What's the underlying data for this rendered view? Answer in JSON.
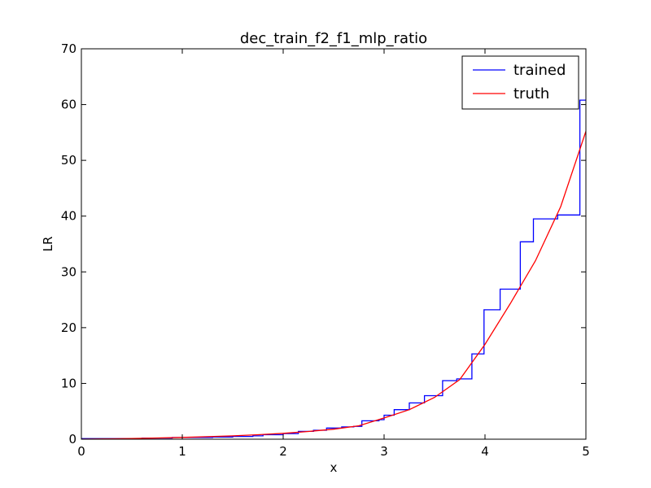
{
  "chart_data": {
    "type": "line",
    "title": "dec_train_f2_f1_mlp_ratio",
    "xlabel": "x",
    "ylabel": "LR",
    "xlim": [
      0,
      5
    ],
    "ylim": [
      0,
      70
    ],
    "xticks": [
      0,
      1,
      2,
      3,
      4,
      5
    ],
    "yticks": [
      0,
      10,
      20,
      30,
      40,
      50,
      60,
      70
    ],
    "grid": false,
    "legend_position": "top-right",
    "series": [
      {
        "name": "trained",
        "color": "#0000ff",
        "step": true,
        "x": [
          0,
          0.6,
          0.9,
          1.3,
          1.5,
          1.7,
          1.8,
          2.0,
          2.15,
          2.3,
          2.43,
          2.58,
          2.7,
          2.78,
          2.95,
          3.0,
          3.1,
          3.25,
          3.4,
          3.58,
          3.72,
          3.87,
          3.99,
          4.15,
          4.35,
          4.48,
          4.72,
          4.94,
          5.0
        ],
        "y": [
          0.1,
          0.2,
          0.3,
          0.4,
          0.5,
          0.6,
          0.8,
          1.0,
          1.4,
          1.6,
          2.0,
          2.2,
          2.3,
          3.3,
          3.5,
          4.3,
          5.3,
          6.5,
          7.8,
          10.5,
          10.8,
          15.3,
          23.2,
          26.9,
          35.4,
          39.5,
          40.2,
          60.8,
          60.8
        ]
      },
      {
        "name": "truth",
        "color": "#ff0000",
        "step": false,
        "x": [
          0,
          0.25,
          0.5,
          0.75,
          1.0,
          1.25,
          1.5,
          1.75,
          2.0,
          2.25,
          2.5,
          2.75,
          3.0,
          3.25,
          3.5,
          3.75,
          4.0,
          4.25,
          4.5,
          4.75,
          5.0
        ],
        "y": [
          0.0,
          0.06,
          0.13,
          0.22,
          0.32,
          0.45,
          0.6,
          0.8,
          1.05,
          1.38,
          1.8,
          2.4,
          3.8,
          5.3,
          7.5,
          10.7,
          17.0,
          24.3,
          32.0,
          41.7,
          55.2
        ]
      }
    ]
  }
}
